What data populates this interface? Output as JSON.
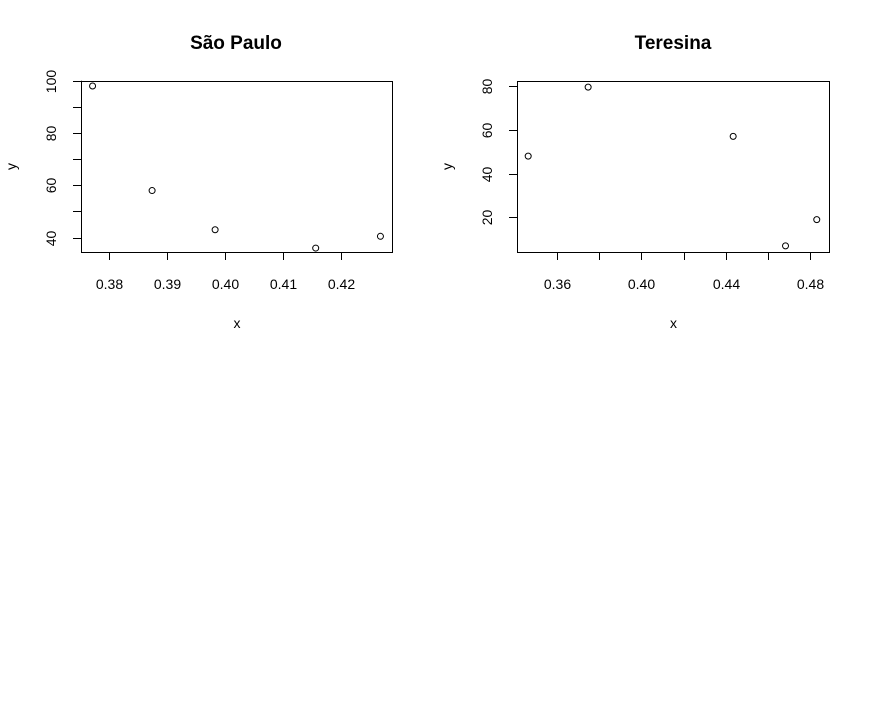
{
  "chart_data": [
    {
      "type": "scatter",
      "title": "São Paulo",
      "xlabel": "x",
      "ylabel": "y",
      "xlim": [
        0.3751,
        0.4289
      ],
      "ylim": [
        34.5,
        99.9
      ],
      "xticks": [
        0.38,
        0.39,
        0.4,
        0.41,
        0.42
      ],
      "xtick_labels": [
        "0.38",
        "0.39",
        "0.40",
        "0.41",
        "0.42"
      ],
      "yticks": [
        40,
        50,
        60,
        70,
        80,
        90,
        100
      ],
      "ytick_labels": [
        "40",
        "",
        "60",
        "",
        "80",
        "",
        "100"
      ],
      "points": [
        {
          "x": 0.3771,
          "y": 98
        },
        {
          "x": 0.3874,
          "y": 58
        },
        {
          "x": 0.3983,
          "y": 43
        },
        {
          "x": 0.4157,
          "y": 36
        },
        {
          "x": 0.4269,
          "y": 40.5
        }
      ],
      "grid": false,
      "marker": "open-circle",
      "color": "#000000"
    },
    {
      "type": "scatter",
      "title": "Teresina",
      "xlabel": "x",
      "ylabel": "y",
      "xlim": [
        0.3411,
        0.4889
      ],
      "ylim": [
        4.2,
        82.3
      ],
      "xticks": [
        0.36,
        0.38,
        0.4,
        0.42,
        0.44,
        0.46,
        0.48
      ],
      "xtick_labels": [
        "0.36",
        "",
        "0.40",
        "",
        "0.44",
        "",
        "0.48"
      ],
      "yticks": [
        20,
        40,
        60,
        80
      ],
      "ytick_labels": [
        "20",
        "40",
        "60",
        "80"
      ],
      "points": [
        {
          "x": 0.3464,
          "y": 48
        },
        {
          "x": 0.3748,
          "y": 79.5
        },
        {
          "x": 0.4435,
          "y": 57
        },
        {
          "x": 0.4683,
          "y": 7
        },
        {
          "x": 0.4831,
          "y": 19
        }
      ],
      "grid": false,
      "marker": "open-circle",
      "color": "#000000"
    }
  ]
}
